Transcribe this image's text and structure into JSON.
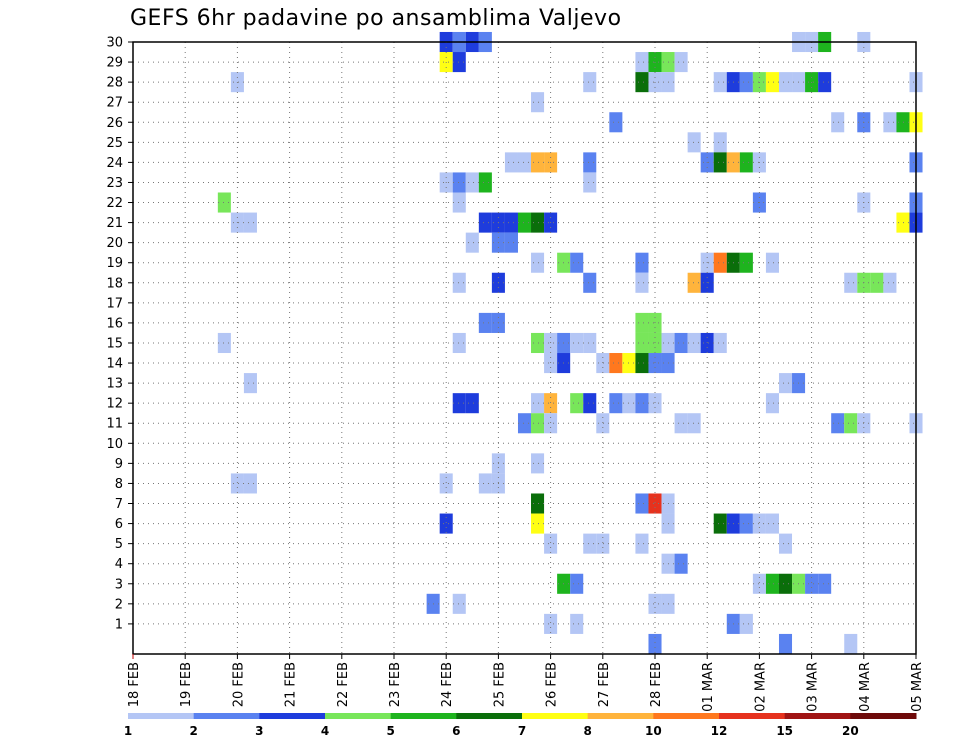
{
  "chart_data": {
    "type": "heatmap",
    "title": "GEFS 6hr padavine po ansamblima Valjevo",
    "xlabel": "",
    "ylabel": "",
    "x_tick_labels": [
      "18 FEB",
      "19 FEB",
      "20 FEB",
      "21 FEB",
      "22 FEB",
      "23 FEB",
      "24 FEB",
      "25 FEB",
      "26 FEB",
      "27 FEB",
      "28 FEB",
      "01 MAR",
      "02 MAR",
      "03 MAR",
      "04 MAR",
      "05 MAR"
    ],
    "y_tick_labels": [
      "1",
      "2",
      "3",
      "4",
      "5",
      "6",
      "7",
      "8",
      "9",
      "10",
      "11",
      "12",
      "13",
      "14",
      "15",
      "16",
      "17",
      "18",
      "19",
      "20",
      "21",
      "22",
      "23",
      "24",
      "25",
      "26",
      "27",
      "28",
      "29",
      "30"
    ],
    "x_unit": "6-hour steps from 18 FEB 00Z",
    "x_range_steps": [
      0,
      60
    ],
    "y_range": [
      0,
      30
    ],
    "grid": true,
    "legend_position": "bottom",
    "legend": {
      "thresholds": [
        "1",
        "2",
        "3",
        "4",
        "5",
        "6",
        "7",
        "8",
        "10",
        "12",
        "15",
        "20"
      ],
      "colors": [
        "#b4c6f5",
        "#5a82f0",
        "#1e3cdc",
        "#78e65a",
        "#1eb41e",
        "#0a6e0a",
        "#ffff14",
        "#ffb43c",
        "#ff781e",
        "#e6321e",
        "#a01414",
        "#6e0a0a"
      ]
    },
    "cells": [
      {
        "m": 30,
        "s": [
          24,
          25,
          26,
          27
        ],
        "c": [
          2,
          1,
          2,
          1
        ]
      },
      {
        "m": 30,
        "s": [
          51,
          52,
          53,
          56
        ],
        "c": [
          0,
          0,
          4,
          0
        ]
      },
      {
        "m": 29,
        "s": [
          24,
          25
        ],
        "c": [
          6,
          2
        ]
      },
      {
        "m": 29,
        "s": [
          39,
          40,
          41,
          42
        ],
        "c": [
          0,
          4,
          3,
          0
        ]
      },
      {
        "m": 28,
        "s": [
          8
        ],
        "c": [
          0
        ]
      },
      {
        "m": 28,
        "s": [
          35
        ],
        "c": [
          0
        ]
      },
      {
        "m": 28,
        "s": [
          39,
          40,
          41
        ],
        "c": [
          5,
          0,
          0
        ]
      },
      {
        "m": 28,
        "s": [
          45,
          46,
          47,
          48,
          49,
          50,
          51,
          52,
          53
        ],
        "c": [
          0,
          2,
          1,
          3,
          6,
          0,
          0,
          4,
          2
        ]
      },
      {
        "m": 28,
        "s": [
          60
        ],
        "c": [
          0
        ]
      },
      {
        "m": 27,
        "s": [
          31
        ],
        "c": [
          0
        ]
      },
      {
        "m": 26,
        "s": [
          37
        ],
        "c": [
          1
        ]
      },
      {
        "m": 26,
        "s": [
          54,
          56,
          58,
          59,
          60
        ],
        "c": [
          0,
          1,
          0,
          4,
          6
        ]
      },
      {
        "m": 25,
        "s": [
          43,
          45
        ],
        "c": [
          0,
          0
        ]
      },
      {
        "m": 24,
        "s": [
          29,
          30,
          31,
          32
        ],
        "c": [
          0,
          0,
          7,
          7
        ]
      },
      {
        "m": 24,
        "s": [
          35
        ],
        "c": [
          1
        ]
      },
      {
        "m": 24,
        "s": [
          44,
          45,
          46,
          47,
          48
        ],
        "c": [
          1,
          5,
          7,
          4,
          0
        ]
      },
      {
        "m": 24,
        "s": [
          60
        ],
        "c": [
          1
        ]
      },
      {
        "m": 23,
        "s": [
          24,
          25,
          26,
          27
        ],
        "c": [
          0,
          1,
          0,
          4
        ]
      },
      {
        "m": 23,
        "s": [
          35
        ],
        "c": [
          0
        ]
      },
      {
        "m": 22,
        "s": [
          7
        ],
        "c": [
          3
        ]
      },
      {
        "m": 22,
        "s": [
          25
        ],
        "c": [
          0
        ]
      },
      {
        "m": 22,
        "s": [
          48
        ],
        "c": [
          1
        ]
      },
      {
        "m": 22,
        "s": [
          56
        ],
        "c": [
          0
        ]
      },
      {
        "m": 22,
        "s": [
          60
        ],
        "c": [
          1
        ]
      },
      {
        "m": 21,
        "s": [
          8,
          9
        ],
        "c": [
          0,
          0
        ]
      },
      {
        "m": 21,
        "s": [
          27,
          28,
          29,
          30,
          31,
          32
        ],
        "c": [
          2,
          2,
          2,
          4,
          5,
          2
        ]
      },
      {
        "m": 21,
        "s": [
          59,
          60
        ],
        "c": [
          6,
          2
        ]
      },
      {
        "m": 20,
        "s": [
          26
        ],
        "c": [
          0
        ]
      },
      {
        "m": 20,
        "s": [
          28,
          29
        ],
        "c": [
          1,
          1
        ]
      },
      {
        "m": 19,
        "s": [
          31
        ],
        "c": [
          0
        ]
      },
      {
        "m": 19,
        "s": [
          33,
          34
        ],
        "c": [
          3,
          1
        ]
      },
      {
        "m": 19,
        "s": [
          39
        ],
        "c": [
          1
        ]
      },
      {
        "m": 19,
        "s": [
          44,
          45,
          46,
          47
        ],
        "c": [
          0,
          8,
          5,
          4
        ]
      },
      {
        "m": 19,
        "s": [
          49
        ],
        "c": [
          0
        ]
      },
      {
        "m": 18,
        "s": [
          25
        ],
        "c": [
          0
        ]
      },
      {
        "m": 18,
        "s": [
          28
        ],
        "c": [
          2
        ]
      },
      {
        "m": 18,
        "s": [
          35
        ],
        "c": [
          1
        ]
      },
      {
        "m": 18,
        "s": [
          39
        ],
        "c": [
          0
        ]
      },
      {
        "m": 18,
        "s": [
          43,
          44
        ],
        "c": [
          7,
          2
        ]
      },
      {
        "m": 18,
        "s": [
          55,
          56,
          57,
          58
        ],
        "c": [
          0,
          3,
          3,
          0
        ]
      },
      {
        "m": 16,
        "s": [
          27,
          28
        ],
        "c": [
          1,
          1
        ]
      },
      {
        "m": 16,
        "s": [
          39,
          40
        ],
        "c": [
          3,
          3
        ]
      },
      {
        "m": 15,
        "s": [
          7
        ],
        "c": [
          0
        ]
      },
      {
        "m": 15,
        "s": [
          25
        ],
        "c": [
          0
        ]
      },
      {
        "m": 15,
        "s": [
          31,
          32,
          33,
          34,
          35
        ],
        "c": [
          3,
          0,
          1,
          0,
          0
        ]
      },
      {
        "m": 15,
        "s": [
          39,
          40,
          41,
          42,
          43,
          44,
          45
        ],
        "c": [
          3,
          3,
          0,
          1,
          0,
          2,
          0
        ]
      },
      {
        "m": 14,
        "s": [
          32,
          33
        ],
        "c": [
          0,
          2
        ]
      },
      {
        "m": 14,
        "s": [
          36,
          37,
          38,
          39,
          40,
          41
        ],
        "c": [
          0,
          8,
          6,
          5,
          1,
          1
        ]
      },
      {
        "m": 13,
        "s": [
          9
        ],
        "c": [
          0
        ]
      },
      {
        "m": 13,
        "s": [
          50,
          51
        ],
        "c": [
          0,
          1
        ]
      },
      {
        "m": 12,
        "s": [
          25,
          26
        ],
        "c": [
          2,
          2
        ]
      },
      {
        "m": 12,
        "s": [
          31,
          32
        ],
        "c": [
          0,
          7
        ]
      },
      {
        "m": 12,
        "s": [
          34,
          35
        ],
        "c": [
          3,
          2
        ]
      },
      {
        "m": 12,
        "s": [
          37,
          38,
          39,
          40
        ],
        "c": [
          1,
          0,
          1,
          0
        ]
      },
      {
        "m": 12,
        "s": [
          49
        ],
        "c": [
          0
        ]
      },
      {
        "m": 11,
        "s": [
          30,
          31,
          32
        ],
        "c": [
          1,
          3,
          0
        ]
      },
      {
        "m": 11,
        "s": [
          36
        ],
        "c": [
          0
        ]
      },
      {
        "m": 11,
        "s": [
          42,
          43
        ],
        "c": [
          0,
          0
        ]
      },
      {
        "m": 11,
        "s": [
          54,
          55,
          56
        ],
        "c": [
          1,
          3,
          0
        ]
      },
      {
        "m": 11,
        "s": [
          60
        ],
        "c": [
          0
        ]
      },
      {
        "m": 9,
        "s": [
          28
        ],
        "c": [
          0
        ]
      },
      {
        "m": 9,
        "s": [
          31
        ],
        "c": [
          0
        ]
      },
      {
        "m": 8,
        "s": [
          8,
          9
        ],
        "c": [
          0,
          0
        ]
      },
      {
        "m": 8,
        "s": [
          24
        ],
        "c": [
          0
        ]
      },
      {
        "m": 8,
        "s": [
          27,
          28
        ],
        "c": [
          0,
          0
        ]
      },
      {
        "m": 7,
        "s": [
          31
        ],
        "c": [
          5
        ]
      },
      {
        "m": 7,
        "s": [
          39,
          40,
          41
        ],
        "c": [
          1,
          9,
          0
        ]
      },
      {
        "m": 6,
        "s": [
          24
        ],
        "c": [
          2
        ]
      },
      {
        "m": 6,
        "s": [
          31
        ],
        "c": [
          6
        ]
      },
      {
        "m": 6,
        "s": [
          41
        ],
        "c": [
          0
        ]
      },
      {
        "m": 6,
        "s": [
          45,
          46,
          47,
          48,
          49
        ],
        "c": [
          5,
          2,
          1,
          0,
          0
        ]
      },
      {
        "m": 5,
        "s": [
          32
        ],
        "c": [
          0
        ]
      },
      {
        "m": 5,
        "s": [
          35,
          36
        ],
        "c": [
          0,
          0
        ]
      },
      {
        "m": 5,
        "s": [
          39
        ],
        "c": [
          0
        ]
      },
      {
        "m": 5,
        "s": [
          50
        ],
        "c": [
          0
        ]
      },
      {
        "m": 4,
        "s": [
          41,
          42
        ],
        "c": [
          0,
          1
        ]
      },
      {
        "m": 3,
        "s": [
          33,
          34
        ],
        "c": [
          4,
          1
        ]
      },
      {
        "m": 3,
        "s": [
          48,
          49,
          50,
          51,
          52,
          53
        ],
        "c": [
          0,
          4,
          5,
          3,
          1,
          1
        ]
      },
      {
        "m": 2,
        "s": [
          23
        ],
        "c": [
          1
        ]
      },
      {
        "m": 2,
        "s": [
          25
        ],
        "c": [
          0
        ]
      },
      {
        "m": 2,
        "s": [
          40,
          41
        ],
        "c": [
          0,
          0
        ]
      },
      {
        "m": 1,
        "s": [
          32
        ],
        "c": [
          0
        ]
      },
      {
        "m": 1,
        "s": [
          34
        ],
        "c": [
          0
        ]
      },
      {
        "m": 1,
        "s": [
          46,
          47
        ],
        "c": [
          1,
          0
        ]
      },
      {
        "m": 0,
        "s": [
          40
        ],
        "c": [
          1
        ]
      },
      {
        "m": 0,
        "s": [
          50
        ],
        "c": [
          1
        ]
      },
      {
        "m": 0,
        "s": [
          55
        ],
        "c": [
          0
        ]
      }
    ]
  }
}
